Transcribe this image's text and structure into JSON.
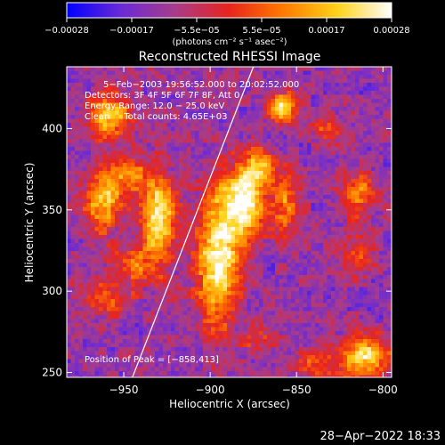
{
  "chart_data": {
    "type": "heatmap",
    "title": "Reconstructed RHESSI Image",
    "xlabel": "Heliocentric X (arcsec)",
    "ylabel": "Heliocentric Y (arcsec)",
    "xlim": [
      -983,
      -795
    ],
    "ylim": [
      247,
      438
    ],
    "x_ticks": [
      {
        "value": -950,
        "label": "−950"
      },
      {
        "value": -900,
        "label": "−900"
      },
      {
        "value": -850,
        "label": "−850"
      },
      {
        "value": -800,
        "label": "−800"
      }
    ],
    "y_ticks": [
      {
        "value": 250,
        "label": "250"
      },
      {
        "value": 300,
        "label": "300"
      },
      {
        "value": 350,
        "label": "350"
      },
      {
        "value": 400,
        "label": "400"
      }
    ],
    "colorbar": {
      "range": [
        -0.00028,
        0.00028
      ],
      "tick_labels": [
        "−0.00028",
        "−0.00017",
        "−5.5e−05",
        "5.5e−05",
        "0.00017",
        "0.00028"
      ],
      "unit_label": "(photons cm⁻² s⁻¹ asec⁻²)",
      "colors": [
        "#0000ff",
        "#6a2ad6",
        "#a83c8a",
        "#e8241c",
        "#ff7a00",
        "#ffd21a",
        "#ffffff"
      ]
    },
    "annotations": [
      "5−Feb−2003 19:56:52.000 to 20:02:52.000",
      "Detectors: 3F 4F 5F 6F 7F 8F, Att 0",
      "Energy Range: 12.0 − 25.0 keV",
      "Clean     Total counts: 4.65E+03",
      "Position of Peak = [−858,413]"
    ],
    "peak_position": [
      -858,
      413
    ],
    "limb_line": [
      [
        -945,
        247
      ],
      [
        -875,
        438
      ]
    ],
    "sources": [
      {
        "x": -895,
        "y": 322,
        "amp": 1.0,
        "sx": 9,
        "sy": 28
      },
      {
        "x": -880,
        "y": 355,
        "amp": 0.9,
        "sx": 8,
        "sy": 15
      },
      {
        "x": -872,
        "y": 376,
        "amp": 0.6,
        "sx": 7,
        "sy": 8
      },
      {
        "x": -930,
        "y": 345,
        "amp": 0.9,
        "sx": 7,
        "sy": 20
      },
      {
        "x": -963,
        "y": 356,
        "amp": 0.75,
        "sx": 7,
        "sy": 14
      },
      {
        "x": -948,
        "y": 372,
        "amp": 0.55,
        "sx": 8,
        "sy": 10
      },
      {
        "x": -962,
        "y": 296,
        "amp": 0.45,
        "sx": 12,
        "sy": 8
      },
      {
        "x": -945,
        "y": 317,
        "amp": 0.45,
        "sx": 9,
        "sy": 8
      },
      {
        "x": -958,
        "y": 408,
        "amp": 0.85,
        "sx": 8,
        "sy": 9
      },
      {
        "x": -858,
        "y": 413,
        "amp": 0.8,
        "sx": 6,
        "sy": 7
      },
      {
        "x": -856,
        "y": 355,
        "amp": 0.55,
        "sx": 6,
        "sy": 14
      },
      {
        "x": -814,
        "y": 360,
        "amp": 0.55,
        "sx": 7,
        "sy": 10
      },
      {
        "x": -811,
        "y": 259,
        "amp": 0.85,
        "sx": 10,
        "sy": 9
      },
      {
        "x": -838,
        "y": 255,
        "amp": 0.45,
        "sx": 8,
        "sy": 6
      },
      {
        "x": -870,
        "y": 270,
        "amp": 0.35,
        "sx": 7,
        "sy": 6
      },
      {
        "x": -815,
        "y": 322,
        "amp": 0.4,
        "sx": 6,
        "sy": 8
      },
      {
        "x": -830,
        "y": 400,
        "amp": 0.4,
        "sx": 7,
        "sy": 6
      }
    ]
  },
  "timestamp": "28−Apr−2022 18:33"
}
